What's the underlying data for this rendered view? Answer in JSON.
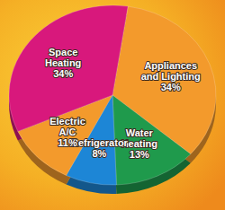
{
  "chart_data": {
    "type": "pie",
    "categories": [
      "Appliances and Lighting",
      "Water Heating",
      "Refrigerator",
      "Electric A/C",
      "Space Heating"
    ],
    "values": [
      34,
      13,
      8,
      11,
      34
    ],
    "value_labels": [
      "34%",
      "13%",
      "8%",
      "11%",
      "34%"
    ],
    "colors": [
      "#f39a2c",
      "#1f9a4c",
      "#1d86d6",
      "#f39a2c",
      "#d8187c"
    ],
    "data_labels": true
  }
}
